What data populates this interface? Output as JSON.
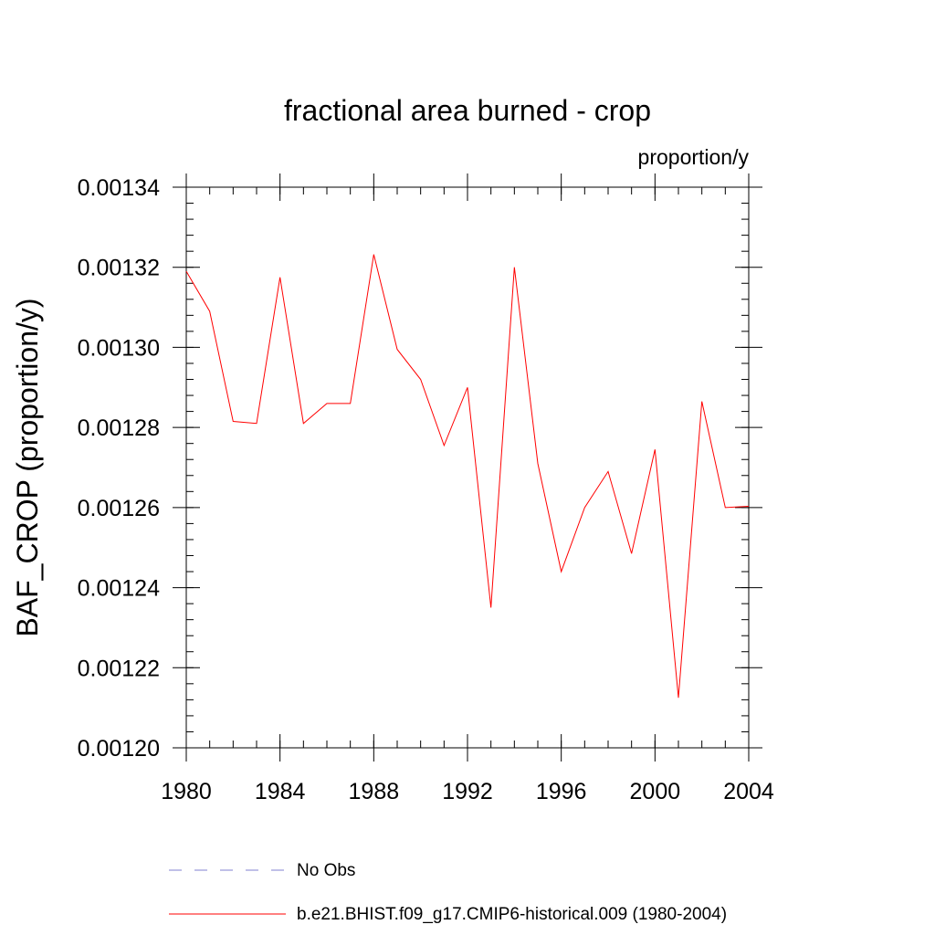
{
  "chart_data": {
    "type": "line",
    "title": "fractional area burned - crop",
    "units": "proportion/y",
    "ylabel": "BAF_CROP  (proportion/y)",
    "xlabel": "",
    "xlim": [
      1980,
      2004
    ],
    "ylim": [
      0.0012,
      0.00134
    ],
    "x_ticks": [
      1980,
      1984,
      1988,
      1992,
      1996,
      2000,
      2004
    ],
    "x_tick_labels": [
      "1980",
      "1984",
      "1988",
      "1992",
      "1996",
      "2000",
      "2004"
    ],
    "y_ticks": [
      0.0012,
      0.00122,
      0.00124,
      0.00126,
      0.00128,
      0.0013,
      0.00132,
      0.00134
    ],
    "y_tick_labels": [
      "0.00120",
      "0.00122",
      "0.00124",
      "0.00126",
      "0.00128",
      "0.00130",
      "0.00132",
      "0.00134"
    ],
    "grid": false,
    "legend_position": "bottom",
    "series": [
      {
        "name": "b.e21.BHIST.f09_g17.CMIP6-historical.009 (1980-2004)",
        "color": "#ff0000",
        "style": "solid",
        "x": [
          1980,
          1981,
          1982,
          1983,
          1984,
          1985,
          1986,
          1987,
          1988,
          1989,
          1990,
          1991,
          1992,
          1993,
          1994,
          1995,
          1996,
          1997,
          1998,
          1999,
          2000,
          2001,
          2002,
          2003,
          2004
        ],
        "values": [
          0.001319,
          0.001309,
          0.0012815,
          0.001281,
          0.0013175,
          0.001281,
          0.001286,
          0.001286,
          0.0013232,
          0.0012995,
          0.001292,
          0.0012755,
          0.00129,
          0.001235,
          0.00132,
          0.001271,
          0.001244,
          0.00126,
          0.001269,
          0.0012485,
          0.0012745,
          0.0012125,
          0.0012865,
          0.00126,
          0.0012603
        ]
      }
    ],
    "legend": [
      {
        "label": "No Obs",
        "color": "#8080d0",
        "style": "dashed"
      },
      {
        "label": "b.e21.BHIST.f09_g17.CMIP6-historical.009 (1980-2004)",
        "color": "#ff0000",
        "style": "solid"
      }
    ]
  }
}
